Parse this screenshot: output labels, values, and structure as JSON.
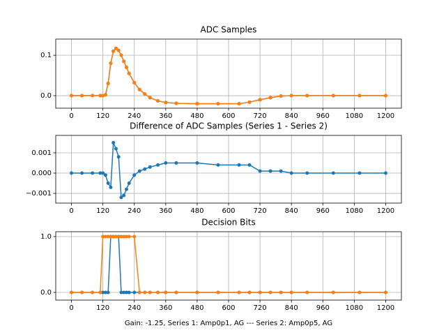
{
  "chart_data": [
    {
      "type": "line",
      "title": "ADC Samples",
      "x": [
        0,
        40,
        80,
        110,
        120,
        130,
        140,
        150,
        160,
        170,
        180,
        190,
        200,
        210,
        220,
        240,
        260,
        280,
        300,
        330,
        360,
        400,
        480,
        560,
        640,
        680,
        720,
        760,
        800,
        840,
        900,
        1000,
        1100,
        1200
      ],
      "series": [
        {
          "color": "#1f77b4",
          "values": [
            0,
            0,
            0,
            0,
            0,
            0.002,
            0.03,
            0.08,
            0.11,
            0.117,
            0.112,
            0.1,
            0.085,
            0.07,
            0.055,
            0.032,
            0.015,
            0.004,
            -0.005,
            -0.013,
            -0.017,
            -0.019,
            -0.02,
            -0.02,
            -0.02,
            -0.016,
            -0.01,
            -0.005,
            -0.001,
            0,
            0,
            0,
            0,
            0
          ]
        },
        {
          "color": "#ff7f0e",
          "values": [
            0,
            0,
            0,
            0,
            0,
            0.002,
            0.03,
            0.08,
            0.11,
            0.117,
            0.112,
            0.1,
            0.085,
            0.07,
            0.055,
            0.032,
            0.015,
            0.004,
            -0.005,
            -0.013,
            -0.017,
            -0.019,
            -0.02,
            -0.02,
            -0.02,
            -0.016,
            -0.01,
            -0.005,
            -0.001,
            0,
            0,
            0,
            0,
            0
          ]
        }
      ],
      "xlim": [
        -60,
        1260
      ],
      "ylim": [
        -0.031,
        0.14
      ],
      "xticks": [
        0,
        120,
        240,
        360,
        480,
        600,
        720,
        840,
        960,
        1080,
        1200
      ],
      "yticks": [
        {
          "value": 0,
          "label": "0.0"
        },
        0.1
      ],
      "grid": true
    },
    {
      "type": "line",
      "title": "Difference of ADC Samples (Series 1 - Series 2)",
      "x": [
        0,
        40,
        80,
        110,
        120,
        130,
        140,
        150,
        160,
        170,
        180,
        190,
        200,
        210,
        220,
        240,
        260,
        280,
        300,
        330,
        360,
        400,
        480,
        560,
        640,
        680,
        720,
        760,
        800,
        840,
        900,
        1000,
        1100,
        1200
      ],
      "series": [
        {
          "color": "#1f77b4",
          "values": [
            0,
            0,
            0,
            0,
            0,
            -0.0001,
            -0.0005,
            -0.0007,
            0.0015,
            0.0012,
            0.0008,
            -0.0012,
            -0.0011,
            -0.0008,
            -0.0005,
            -0.0001,
            0.0001,
            0.0002,
            0.0003,
            0.0004,
            0.0005,
            0.0005,
            0.0005,
            0.0004,
            0.0004,
            0.0004,
            0.0001,
            0.0001,
            0.0001,
            0,
            0,
            0,
            0,
            0
          ]
        }
      ],
      "xlim": [
        -60,
        1260
      ],
      "ylim": [
        -0.00148,
        0.00186
      ],
      "xticks": [
        0,
        120,
        240,
        360,
        480,
        600,
        720,
        840,
        960,
        1080,
        1200
      ],
      "yticks": [
        {
          "value": -0.001,
          "label": "−0.001"
        },
        {
          "value": 0,
          "label": "0.000"
        },
        0.001
      ],
      "grid": true
    },
    {
      "type": "line",
      "title": "Decision Bits",
      "xlabel": "Gain: -1.25, Series 1: Amp0p1, AG --- Series 2: Amp0p5, AG",
      "x": [
        0,
        40,
        80,
        110,
        120,
        130,
        140,
        150,
        160,
        170,
        180,
        190,
        200,
        210,
        220,
        240,
        260,
        280,
        300,
        330,
        360,
        400,
        480,
        560,
        640,
        680,
        720,
        760,
        800,
        840,
        900,
        1000,
        1100,
        1200
      ],
      "series": [
        {
          "color": "#1f77b4",
          "values": [
            0,
            0,
            0,
            0,
            0,
            0,
            0,
            1,
            1,
            1,
            1,
            0,
            0,
            0,
            0,
            0,
            0,
            0,
            0,
            0,
            0,
            0,
            0,
            0,
            0,
            0,
            0,
            0,
            0,
            0,
            0,
            0,
            0,
            0
          ]
        },
        {
          "color": "#ff7f0e",
          "values": [
            0,
            0,
            0,
            0,
            1,
            1,
            1,
            1,
            1,
            1,
            1,
            1,
            1,
            1,
            1,
            1,
            0,
            0,
            0,
            0,
            0,
            0,
            0,
            0,
            0,
            0,
            0,
            0,
            0,
            0,
            0,
            0,
            0,
            0
          ]
        }
      ],
      "xlim": [
        -60,
        1260
      ],
      "ylim": [
        -0.1375,
        1.0875
      ],
      "xticks": [
        0,
        120,
        240,
        360,
        480,
        600,
        720,
        840,
        960,
        1080,
        1200
      ],
      "yticks": [
        {
          "value": 0,
          "label": "0.0"
        },
        {
          "value": 1,
          "label": "1.0"
        }
      ],
      "grid": true
    }
  ]
}
